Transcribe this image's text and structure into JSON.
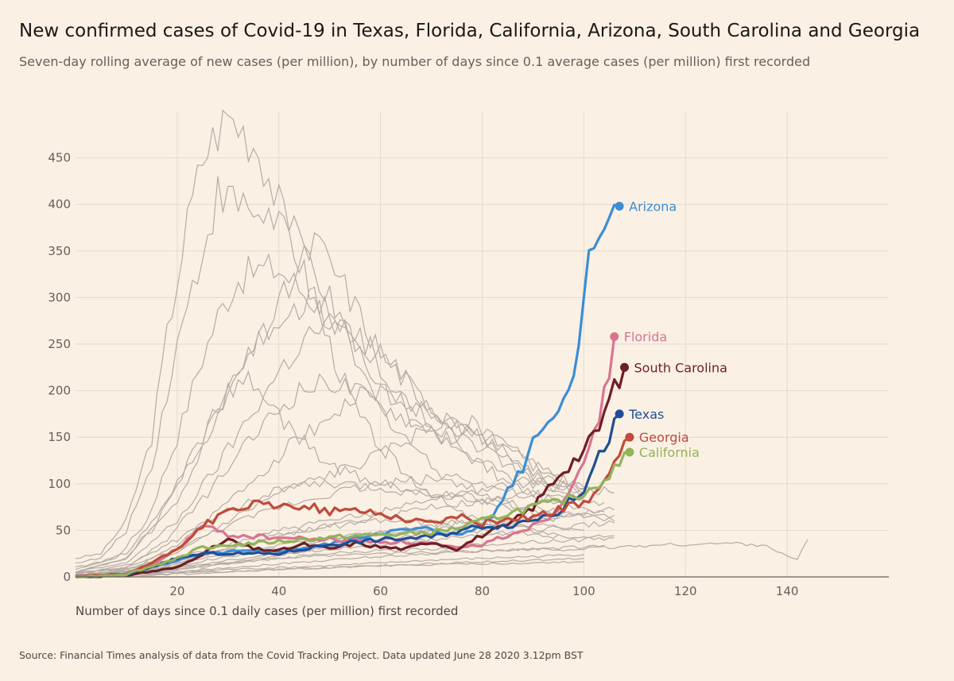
{
  "title": "New confirmed cases of Covid-19 in Texas, Florida, California, Arizona, South Carolina and Georgia",
  "subtitle": "Seven-day rolling average of new cases (per million), by number of days since 0.1 average cases (per million) first recorded",
  "source": "Source: Financial Times analysis of data from the Covid Tracking Project. Data updated June 28 2020 3.12pm BST",
  "chart_data": {
    "type": "line",
    "title": "New confirmed cases of Covid-19 in Texas, Florida, California, Arizona, South Carolina and Georgia",
    "xlabel": "Number of days since 0.1 daily cases (per million) first recorded",
    "ylabel": "",
    "xlim": [
      0,
      160
    ],
    "ylim": [
      0,
      500
    ],
    "x_ticks": [
      20,
      40,
      60,
      80,
      100,
      120,
      140
    ],
    "y_ticks": [
      0,
      50,
      100,
      150,
      200,
      250,
      300,
      350,
      400,
      450
    ],
    "grid": true,
    "legend": "direct labels at line ends",
    "highlight_series": [
      {
        "name": "Arizona",
        "color": "#3a8dd6",
        "x": [
          0,
          10,
          20,
          25,
          30,
          40,
          50,
          60,
          70,
          75,
          80,
          83,
          85,
          88,
          90,
          92,
          95,
          97,
          98,
          100,
          102,
          104,
          106,
          107
        ],
        "y": [
          0,
          3,
          18,
          24,
          27,
          28,
          35,
          48,
          52,
          44,
          55,
          72,
          95,
          118,
          148,
          167,
          175,
          213,
          218,
          300,
          372,
          378,
          390,
          398
        ]
      },
      {
        "name": "Florida",
        "color": "#d97490",
        "x": [
          0,
          10,
          15,
          20,
          25,
          30,
          40,
          50,
          60,
          70,
          75,
          80,
          85,
          90,
          95,
          100,
          103,
          106
        ],
        "y": [
          0,
          3,
          12,
          30,
          55,
          45,
          42,
          40,
          38,
          36,
          30,
          35,
          45,
          55,
          72,
          130,
          160,
          258
        ]
      },
      {
        "name": "South Carolina",
        "color": "#6e1e25",
        "x": [
          0,
          10,
          20,
          25,
          30,
          35,
          40,
          45,
          50,
          55,
          60,
          65,
          70,
          75,
          80,
          85,
          90,
          95,
          100,
          103,
          106,
          108
        ],
        "y": [
          0,
          2,
          10,
          25,
          40,
          30,
          28,
          35,
          30,
          36,
          32,
          30,
          38,
          30,
          45,
          55,
          75,
          110,
          135,
          160,
          205,
          225
        ]
      },
      {
        "name": "Texas",
        "color": "#1f4e96",
        "x": [
          0,
          10,
          20,
          25,
          30,
          40,
          50,
          60,
          70,
          80,
          85,
          90,
          95,
          100,
          104,
          107
        ],
        "y": [
          0,
          2,
          20,
          25,
          25,
          25,
          35,
          40,
          43,
          55,
          55,
          62,
          70,
          95,
          140,
          175
        ]
      },
      {
        "name": "Georgia",
        "color": "#c14a39",
        "x": [
          0,
          10,
          15,
          20,
          25,
          30,
          35,
          40,
          45,
          50,
          55,
          60,
          65,
          70,
          75,
          80,
          85,
          90,
          95,
          100,
          104,
          107,
          109
        ],
        "y": [
          0,
          3,
          15,
          30,
          55,
          70,
          78,
          75,
          77,
          70,
          72,
          68,
          62,
          58,
          65,
          58,
          62,
          65,
          72,
          80,
          100,
          128,
          150
        ]
      },
      {
        "name": "California",
        "color": "#93b35a",
        "x": [
          0,
          10,
          20,
          25,
          30,
          35,
          40,
          45,
          50,
          55,
          60,
          65,
          70,
          75,
          80,
          85,
          90,
          95,
          100,
          104,
          107,
          109
        ],
        "y": [
          0,
          3,
          20,
          32,
          34,
          36,
          38,
          40,
          42,
          44,
          45,
          46,
          48,
          52,
          60,
          68,
          75,
          80,
          90,
          105,
          120,
          134
        ]
      }
    ]
  },
  "background_series": [
    [
      [
        0,
        20
      ],
      [
        5,
        25
      ],
      [
        10,
        60
      ],
      [
        15,
        150
      ],
      [
        18,
        260
      ],
      [
        22,
        380
      ],
      [
        25,
        450
      ],
      [
        28,
        480
      ],
      [
        30,
        495
      ],
      [
        33,
        480
      ],
      [
        36,
        460
      ],
      [
        40,
        400
      ],
      [
        44,
        340
      ],
      [
        48,
        280
      ],
      [
        52,
        220
      ],
      [
        56,
        170
      ],
      [
        60,
        140
      ],
      [
        65,
        110
      ],
      [
        70,
        90
      ],
      [
        75,
        70
      ],
      [
        80,
        60
      ],
      [
        85,
        55
      ],
      [
        90,
        50
      ],
      [
        95,
        45
      ]
    ],
    [
      [
        0,
        15
      ],
      [
        5,
        20
      ],
      [
        10,
        50
      ],
      [
        15,
        120
      ],
      [
        20,
        250
      ],
      [
        25,
        350
      ],
      [
        28,
        410
      ],
      [
        32,
        400
      ],
      [
        36,
        390
      ],
      [
        40,
        385
      ],
      [
        44,
        360
      ],
      [
        48,
        320
      ],
      [
        52,
        270
      ],
      [
        56,
        220
      ],
      [
        60,
        180
      ],
      [
        65,
        150
      ],
      [
        70,
        120
      ],
      [
        75,
        100
      ],
      [
        80,
        90
      ],
      [
        85,
        80
      ],
      [
        90,
        70
      ],
      [
        95,
        65
      ]
    ],
    [
      [
        0,
        10
      ],
      [
        8,
        20
      ],
      [
        14,
        60
      ],
      [
        20,
        150
      ],
      [
        24,
        220
      ],
      [
        28,
        280
      ],
      [
        32,
        320
      ],
      [
        36,
        330
      ],
      [
        40,
        330
      ],
      [
        44,
        310
      ],
      [
        48,
        290
      ],
      [
        52,
        260
      ],
      [
        56,
        240
      ],
      [
        60,
        220
      ],
      [
        65,
        190
      ],
      [
        70,
        160
      ],
      [
        75,
        140
      ],
      [
        80,
        120
      ],
      [
        85,
        100
      ],
      [
        90,
        90
      ],
      [
        95,
        80
      ]
    ],
    [
      [
        0,
        5
      ],
      [
        10,
        20
      ],
      [
        16,
        60
      ],
      [
        22,
        120
      ],
      [
        28,
        180
      ],
      [
        34,
        240
      ],
      [
        40,
        280
      ],
      [
        46,
        300
      ],
      [
        52,
        270
      ],
      [
        56,
        240
      ],
      [
        60,
        200
      ],
      [
        66,
        170
      ],
      [
        72,
        150
      ],
      [
        78,
        130
      ],
      [
        84,
        110
      ],
      [
        90,
        100
      ],
      [
        96,
        90
      ],
      [
        100,
        85
      ]
    ],
    [
      [
        0,
        8
      ],
      [
        10,
        25
      ],
      [
        18,
        80
      ],
      [
        24,
        140
      ],
      [
        30,
        200
      ],
      [
        36,
        250
      ],
      [
        42,
        310
      ],
      [
        47,
        360
      ],
      [
        52,
        320
      ],
      [
        56,
        280
      ],
      [
        60,
        240
      ],
      [
        65,
        210
      ],
      [
        70,
        180
      ],
      [
        75,
        160
      ],
      [
        80,
        150
      ],
      [
        85,
        140
      ],
      [
        90,
        120
      ],
      [
        95,
        110
      ]
    ],
    [
      [
        0,
        5
      ],
      [
        10,
        15
      ],
      [
        20,
        60
      ],
      [
        28,
        120
      ],
      [
        34,
        170
      ],
      [
        40,
        220
      ],
      [
        46,
        260
      ],
      [
        50,
        270
      ],
      [
        55,
        260
      ],
      [
        60,
        240
      ],
      [
        65,
        210
      ],
      [
        70,
        180
      ],
      [
        75,
        165
      ],
      [
        80,
        150
      ],
      [
        85,
        130
      ],
      [
        90,
        110
      ],
      [
        95,
        100
      ],
      [
        100,
        95
      ]
    ],
    [
      [
        0,
        4
      ],
      [
        10,
        10
      ],
      [
        18,
        40
      ],
      [
        26,
        90
      ],
      [
        32,
        130
      ],
      [
        38,
        170
      ],
      [
        44,
        200
      ],
      [
        50,
        210
      ],
      [
        55,
        200
      ],
      [
        60,
        185
      ],
      [
        65,
        170
      ],
      [
        70,
        160
      ],
      [
        75,
        150
      ],
      [
        80,
        140
      ],
      [
        85,
        120
      ],
      [
        90,
        105
      ],
      [
        95,
        95
      ],
      [
        100,
        90
      ]
    ],
    [
      [
        0,
        3
      ],
      [
        12,
        10
      ],
      [
        20,
        35
      ],
      [
        28,
        70
      ],
      [
        36,
        110
      ],
      [
        44,
        150
      ],
      [
        52,
        180
      ],
      [
        58,
        200
      ],
      [
        64,
        190
      ],
      [
        70,
        175
      ],
      [
        76,
        160
      ],
      [
        82,
        140
      ],
      [
        88,
        120
      ],
      [
        94,
        105
      ],
      [
        100,
        95
      ]
    ],
    [
      [
        0,
        5
      ],
      [
        10,
        20
      ],
      [
        20,
        80
      ],
      [
        26,
        150
      ],
      [
        30,
        200
      ],
      [
        34,
        210
      ],
      [
        38,
        190
      ],
      [
        42,
        160
      ],
      [
        46,
        140
      ],
      [
        50,
        120
      ],
      [
        55,
        110
      ],
      [
        60,
        100
      ],
      [
        66,
        95
      ],
      [
        72,
        90
      ],
      [
        78,
        85
      ],
      [
        84,
        80
      ],
      [
        90,
        75
      ],
      [
        96,
        70
      ]
    ],
    [
      [
        0,
        2
      ],
      [
        10,
        8
      ],
      [
        20,
        25
      ],
      [
        30,
        60
      ],
      [
        40,
        90
      ],
      [
        50,
        110
      ],
      [
        60,
        130
      ],
      [
        66,
        150
      ],
      [
        70,
        160
      ],
      [
        75,
        170
      ],
      [
        80,
        160
      ],
      [
        85,
        140
      ],
      [
        90,
        120
      ],
      [
        95,
        100
      ],
      [
        100,
        90
      ]
    ],
    [
      [
        0,
        3
      ],
      [
        10,
        10
      ],
      [
        20,
        30
      ],
      [
        30,
        55
      ],
      [
        40,
        75
      ],
      [
        50,
        90
      ],
      [
        60,
        100
      ],
      [
        70,
        105
      ],
      [
        76,
        110
      ],
      [
        80,
        100
      ],
      [
        86,
        90
      ],
      [
        92,
        80
      ],
      [
        98,
        75
      ],
      [
        104,
        70
      ]
    ],
    [
      [
        0,
        2
      ],
      [
        10,
        5
      ],
      [
        20,
        15
      ],
      [
        30,
        30
      ],
      [
        40,
        45
      ],
      [
        50,
        55
      ],
      [
        60,
        65
      ],
      [
        70,
        75
      ],
      [
        80,
        80
      ],
      [
        86,
        85
      ],
      [
        92,
        90
      ],
      [
        98,
        85
      ],
      [
        104,
        80
      ]
    ],
    [
      [
        0,
        4
      ],
      [
        10,
        12
      ],
      [
        20,
        40
      ],
      [
        30,
        70
      ],
      [
        40,
        95
      ],
      [
        50,
        100
      ],
      [
        60,
        95
      ],
      [
        70,
        90
      ],
      [
        80,
        80
      ],
      [
        90,
        70
      ],
      [
        100,
        65
      ],
      [
        106,
        60
      ]
    ],
    [
      [
        0,
        2
      ],
      [
        10,
        6
      ],
      [
        20,
        20
      ],
      [
        30,
        35
      ],
      [
        40,
        50
      ],
      [
        50,
        60
      ],
      [
        60,
        70
      ],
      [
        70,
        85
      ],
      [
        80,
        95
      ],
      [
        90,
        100
      ],
      [
        96,
        105
      ],
      [
        100,
        95
      ],
      [
        106,
        90
      ]
    ],
    [
      [
        0,
        1
      ],
      [
        10,
        4
      ],
      [
        20,
        12
      ],
      [
        30,
        22
      ],
      [
        40,
        30
      ],
      [
        50,
        40
      ],
      [
        60,
        48
      ],
      [
        70,
        55
      ],
      [
        80,
        60
      ],
      [
        90,
        62
      ],
      [
        100,
        65
      ],
      [
        106,
        66
      ]
    ],
    [
      [
        0,
        1
      ],
      [
        10,
        3
      ],
      [
        20,
        10
      ],
      [
        30,
        18
      ],
      [
        40,
        25
      ],
      [
        50,
        30
      ],
      [
        60,
        35
      ],
      [
        70,
        40
      ],
      [
        80,
        45
      ],
      [
        90,
        50
      ],
      [
        100,
        55
      ],
      [
        106,
        58
      ]
    ],
    [
      [
        0,
        1
      ],
      [
        10,
        3
      ],
      [
        20,
        8
      ],
      [
        30,
        14
      ],
      [
        40,
        20
      ],
      [
        50,
        25
      ],
      [
        60,
        28
      ],
      [
        70,
        30
      ],
      [
        80,
        35
      ],
      [
        90,
        38
      ],
      [
        100,
        40
      ],
      [
        106,
        42
      ]
    ],
    [
      [
        0,
        0
      ],
      [
        10,
        2
      ],
      [
        20,
        6
      ],
      [
        30,
        10
      ],
      [
        40,
        14
      ],
      [
        50,
        18
      ],
      [
        60,
        22
      ],
      [
        70,
        25
      ],
      [
        80,
        28
      ],
      [
        90,
        30
      ],
      [
        100,
        32
      ],
      [
        104,
        34
      ]
    ],
    [
      [
        0,
        0
      ],
      [
        10,
        2
      ],
      [
        20,
        5
      ],
      [
        30,
        8
      ],
      [
        40,
        10
      ],
      [
        50,
        12
      ],
      [
        60,
        15
      ],
      [
        70,
        18
      ],
      [
        80,
        20
      ],
      [
        90,
        22
      ],
      [
        100,
        24
      ]
    ],
    [
      [
        0,
        0
      ],
      [
        10,
        1
      ],
      [
        20,
        4
      ],
      [
        30,
        6
      ],
      [
        40,
        8
      ],
      [
        50,
        10
      ],
      [
        60,
        12
      ],
      [
        70,
        14
      ],
      [
        80,
        16
      ],
      [
        90,
        18
      ],
      [
        100,
        20
      ]
    ],
    [
      [
        0,
        2
      ],
      [
        20,
        10
      ],
      [
        40,
        20
      ],
      [
        60,
        25
      ],
      [
        80,
        28
      ],
      [
        100,
        30
      ],
      [
        110,
        33
      ],
      [
        120,
        35
      ],
      [
        130,
        36
      ],
      [
        136,
        34
      ],
      [
        140,
        22
      ],
      [
        142,
        18
      ],
      [
        144,
        40
      ]
    ],
    [
      [
        0,
        1
      ],
      [
        15,
        5
      ],
      [
        30,
        15
      ],
      [
        45,
        28
      ],
      [
        60,
        40
      ],
      [
        75,
        55
      ],
      [
        90,
        62
      ],
      [
        100,
        70
      ],
      [
        106,
        72
      ]
    ],
    [
      [
        0,
        1
      ],
      [
        15,
        8
      ],
      [
        30,
        25
      ],
      [
        45,
        38
      ],
      [
        60,
        48
      ],
      [
        75,
        50
      ],
      [
        90,
        45
      ],
      [
        100,
        42
      ],
      [
        106,
        44
      ]
    ],
    [
      [
        0,
        2
      ],
      [
        15,
        10
      ],
      [
        30,
        30
      ],
      [
        45,
        50
      ],
      [
        60,
        60
      ],
      [
        75,
        58
      ],
      [
        90,
        55
      ],
      [
        100,
        50
      ]
    ],
    [
      [
        0,
        0
      ],
      [
        20,
        3
      ],
      [
        40,
        8
      ],
      [
        60,
        12
      ],
      [
        80,
        14
      ],
      [
        100,
        16
      ]
    ]
  ]
}
